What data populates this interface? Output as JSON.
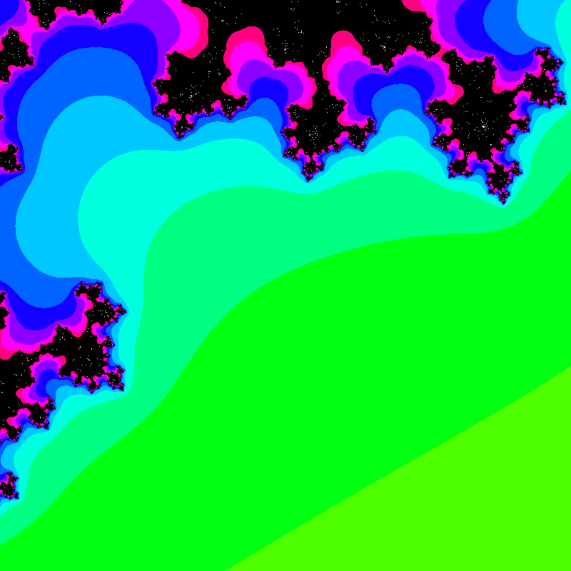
{
  "fractal": {
    "kind": "Julia set",
    "interior_color": "#ffffff",
    "escape_palette": [
      "#9cff00",
      "#4dff00",
      "#00ff10",
      "#00ff80",
      "#00ffdc",
      "#00c8ff",
      "#0064ff",
      "#1400ff",
      "#8c00ff",
      "#ff00ff",
      "#ff0080",
      "#000000"
    ],
    "constant": {
      "re": -0.70176,
      "im": -0.3842
    }
  }
}
